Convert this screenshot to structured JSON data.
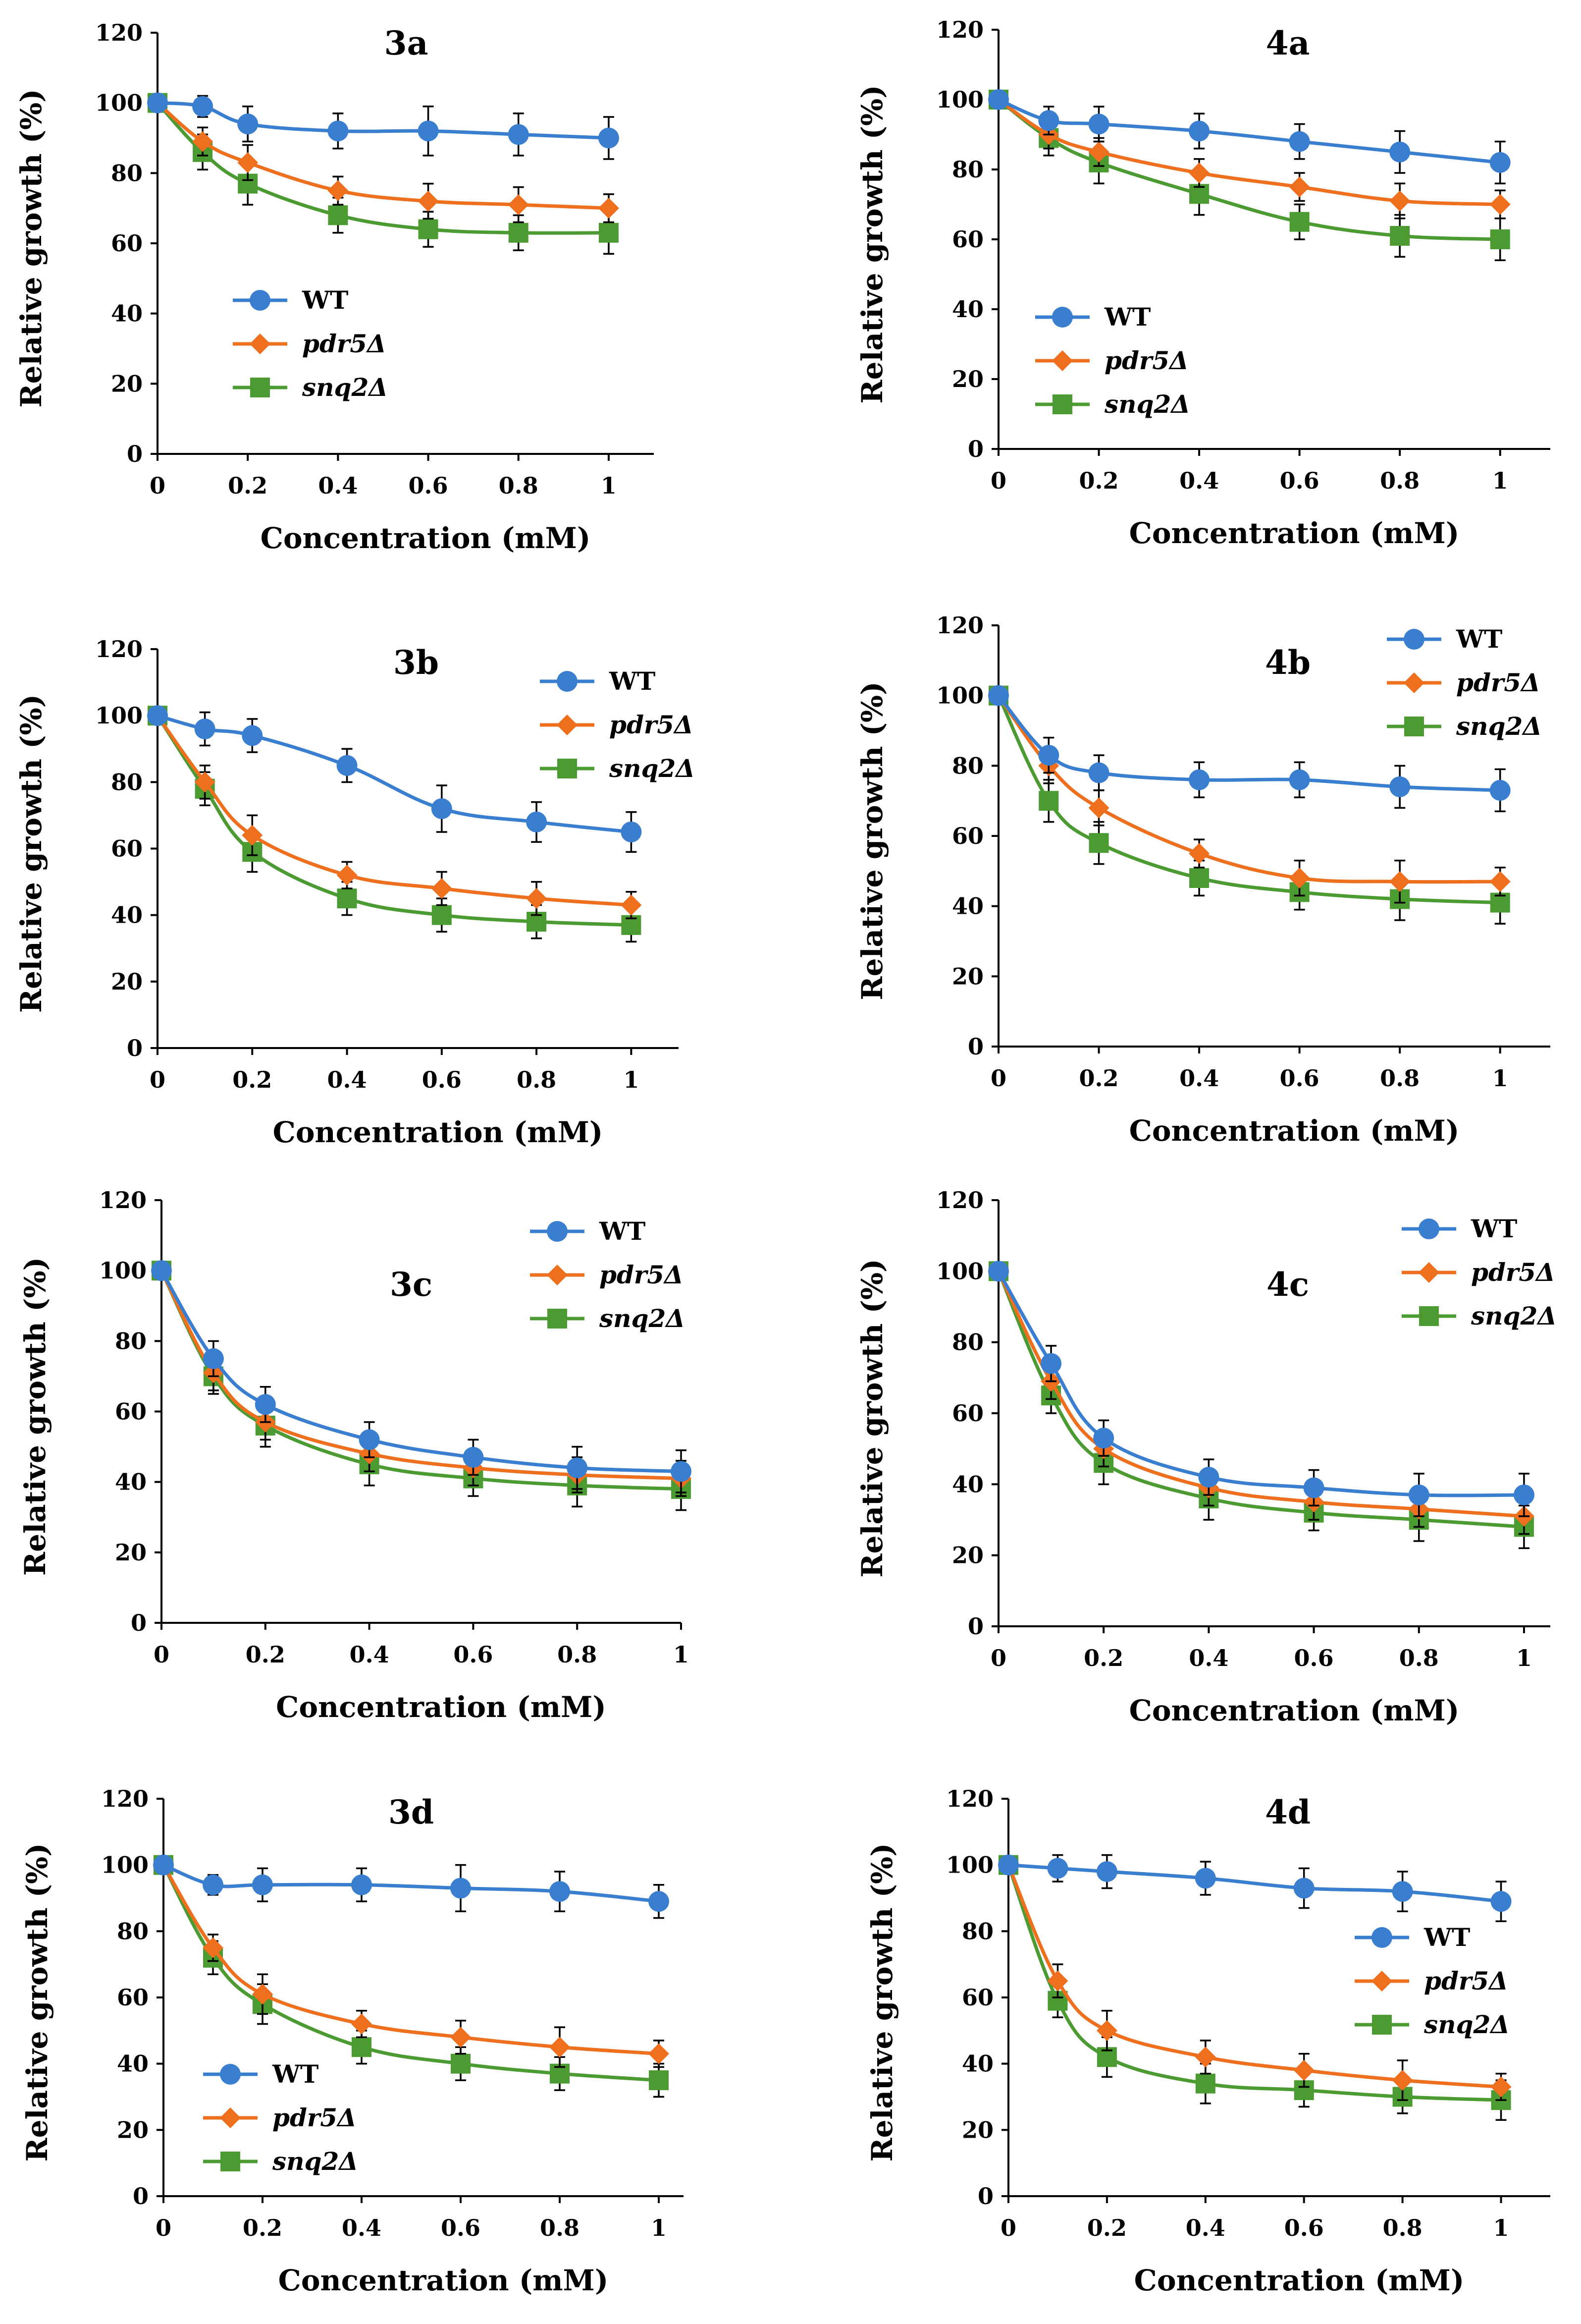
{
  "colors": {
    "WT": "#3a7fcf",
    "pdr5": "#ee6f1e",
    "snq2": "#4c9a32",
    "axis": "#000000"
  },
  "chart_data": [
    {
      "type": "line",
      "title": "3a",
      "xlabel": "Concentration (mM)",
      "ylabel": "Relative growth (%)",
      "xlim": [
        0,
        1.1
      ],
      "ylim": [
        0,
        120
      ],
      "x_ticks": [
        "0",
        "0.2",
        "0.4",
        "0.6",
        "0.8",
        "1"
      ],
      "y_ticks": [
        "0",
        "20",
        "40",
        "60",
        "80",
        "100",
        "120"
      ],
      "x": [
        0,
        0.1,
        0.2,
        0.4,
        0.6,
        0.8,
        1
      ],
      "legend_position": "lower-left",
      "series": [
        {
          "name": "WT",
          "marker": "circle",
          "values": [
            100,
            99,
            94,
            92,
            92,
            91,
            90
          ],
          "errors": [
            0,
            3,
            5,
            5,
            7,
            6,
            6
          ]
        },
        {
          "name": "pdr5Δ",
          "marker": "diamond",
          "values": [
            100,
            89,
            83,
            75,
            72,
            71,
            70
          ],
          "errors": [
            0,
            4,
            5,
            4,
            5,
            5,
            4
          ]
        },
        {
          "name": "snq2Δ",
          "marker": "square",
          "values": [
            100,
            86,
            77,
            68,
            64,
            63,
            63
          ],
          "errors": [
            0,
            5,
            6,
            5,
            5,
            5,
            6
          ]
        }
      ]
    },
    {
      "type": "line",
      "title": "4a",
      "xlabel": "Concentration (mM)",
      "ylabel": "Relative growth (%)",
      "xlim": [
        0,
        1.1
      ],
      "ylim": [
        0,
        120
      ],
      "x_ticks": [
        "0",
        "0.2",
        "0.4",
        "0.6",
        "0.8",
        "1"
      ],
      "y_ticks": [
        "0",
        "20",
        "40",
        "60",
        "80",
        "100",
        "120"
      ],
      "x": [
        0,
        0.1,
        0.2,
        0.4,
        0.6,
        0.8,
        1
      ],
      "legend_position": "lower-left",
      "series": [
        {
          "name": "WT",
          "marker": "circle",
          "values": [
            100,
            94,
            93,
            91,
            88,
            85,
            82
          ],
          "errors": [
            0,
            4,
            5,
            5,
            5,
            6,
            6
          ]
        },
        {
          "name": "pdr5Δ",
          "marker": "diamond",
          "values": [
            100,
            90,
            85,
            79,
            75,
            71,
            70
          ],
          "errors": [
            0,
            4,
            4,
            4,
            4,
            5,
            4
          ]
        },
        {
          "name": "snq2Δ",
          "marker": "square",
          "values": [
            100,
            89,
            82,
            73,
            65,
            61,
            60
          ],
          "errors": [
            0,
            5,
            6,
            6,
            5,
            6,
            6
          ]
        }
      ]
    },
    {
      "type": "line",
      "title": "3b",
      "xlabel": "Concentration (mM)",
      "ylabel": "Relative growth (%)",
      "xlim": [
        0,
        1.1
      ],
      "ylim": [
        0,
        120
      ],
      "x_ticks": [
        "0",
        "0.2",
        "0.4",
        "0.6",
        "0.8",
        "1"
      ],
      "y_ticks": [
        "0",
        "20",
        "40",
        "60",
        "80",
        "100",
        "120"
      ],
      "x": [
        0,
        0.1,
        0.2,
        0.4,
        0.6,
        0.8,
        1
      ],
      "legend_position": "top-right",
      "series": [
        {
          "name": "WT",
          "marker": "circle",
          "values": [
            100,
            96,
            94,
            85,
            72,
            68,
            65
          ],
          "errors": [
            0,
            5,
            5,
            5,
            7,
            6,
            6
          ]
        },
        {
          "name": "pdr5Δ",
          "marker": "diamond",
          "values": [
            100,
            80,
            64,
            52,
            48,
            45,
            43
          ],
          "errors": [
            0,
            5,
            6,
            4,
            5,
            5,
            4
          ]
        },
        {
          "name": "snq2Δ",
          "marker": "square",
          "values": [
            100,
            78,
            59,
            45,
            40,
            38,
            37
          ],
          "errors": [
            0,
            5,
            6,
            5,
            5,
            5,
            5
          ]
        }
      ]
    },
    {
      "type": "line",
      "title": "4b",
      "xlabel": "Concentration (mM)",
      "ylabel": "Relative growth (%)",
      "xlim": [
        0,
        1.1
      ],
      "ylim": [
        0,
        120
      ],
      "x_ticks": [
        "0",
        "0.2",
        "0.4",
        "0.6",
        "0.8",
        "1"
      ],
      "y_ticks": [
        "0",
        "20",
        "40",
        "60",
        "80",
        "100",
        "120"
      ],
      "x": [
        0,
        0.1,
        0.2,
        0.4,
        0.6,
        0.8,
        1
      ],
      "legend_position": "top-right",
      "series": [
        {
          "name": "WT",
          "marker": "circle",
          "values": [
            100,
            83,
            78,
            76,
            76,
            74,
            73
          ],
          "errors": [
            0,
            5,
            5,
            5,
            5,
            6,
            6
          ]
        },
        {
          "name": "pdr5Δ",
          "marker": "diamond",
          "values": [
            100,
            80,
            68,
            55,
            48,
            47,
            47
          ],
          "errors": [
            0,
            5,
            5,
            4,
            5,
            6,
            4
          ]
        },
        {
          "name": "snq2Δ",
          "marker": "square",
          "values": [
            100,
            70,
            58,
            48,
            44,
            42,
            41
          ],
          "errors": [
            0,
            6,
            6,
            5,
            5,
            6,
            6
          ]
        }
      ]
    },
    {
      "type": "line",
      "title": "3c",
      "xlabel": "Concentration (mM)",
      "ylabel": "Relative growth (%)",
      "xlim": [
        0,
        1.0
      ],
      "ylim": [
        0,
        120
      ],
      "x_ticks": [
        "0",
        "0.2",
        "0.4",
        "0.6",
        "0.8",
        "1"
      ],
      "y_ticks": [
        "0",
        "20",
        "40",
        "60",
        "80",
        "100",
        "120"
      ],
      "x": [
        0,
        0.1,
        0.2,
        0.4,
        0.6,
        0.8,
        1
      ],
      "legend_position": "top-right",
      "series": [
        {
          "name": "WT",
          "marker": "circle",
          "values": [
            100,
            75,
            62,
            52,
            47,
            44,
            43
          ],
          "errors": [
            0,
            5,
            5,
            5,
            5,
            6,
            6
          ]
        },
        {
          "name": "pdr5Δ",
          "marker": "diamond",
          "values": [
            100,
            71,
            57,
            48,
            44,
            42,
            41
          ],
          "errors": [
            0,
            5,
            5,
            5,
            5,
            5,
            5
          ]
        },
        {
          "name": "snq2Δ",
          "marker": "square",
          "values": [
            100,
            70,
            56,
            45,
            41,
            39,
            38
          ],
          "errors": [
            0,
            5,
            6,
            6,
            5,
            6,
            6
          ]
        }
      ]
    },
    {
      "type": "line",
      "title": "4c",
      "xlabel": "Concentration (mM)",
      "ylabel": "Relative growth (%)",
      "xlim": [
        0,
        1.05
      ],
      "ylim": [
        0,
        120
      ],
      "x_ticks": [
        "0",
        "0.2",
        "0.4",
        "0.6",
        "0.8",
        "1"
      ],
      "y_ticks": [
        "0",
        "20",
        "40",
        "60",
        "80",
        "100",
        "120"
      ],
      "x": [
        0,
        0.1,
        0.2,
        0.4,
        0.6,
        0.8,
        1
      ],
      "legend_position": "top-right",
      "series": [
        {
          "name": "WT",
          "marker": "circle",
          "values": [
            100,
            74,
            53,
            42,
            39,
            37,
            37
          ],
          "errors": [
            0,
            5,
            5,
            5,
            5,
            6,
            6
          ]
        },
        {
          "name": "pdr5Δ",
          "marker": "diamond",
          "values": [
            100,
            69,
            50,
            39,
            35,
            33,
            31
          ],
          "errors": [
            0,
            5,
            5,
            5,
            5,
            5,
            5
          ]
        },
        {
          "name": "snq2Δ",
          "marker": "square",
          "values": [
            100,
            65,
            46,
            36,
            32,
            30,
            28
          ],
          "errors": [
            0,
            5,
            6,
            6,
            5,
            6,
            6
          ]
        }
      ]
    },
    {
      "type": "line",
      "title": "3d",
      "xlabel": "Concentration (mM)",
      "ylabel": "Relative growth (%)",
      "xlim": [
        0,
        1.05
      ],
      "ylim": [
        0,
        120
      ],
      "x_ticks": [
        "0",
        "0.2",
        "0.4",
        "0.6",
        "0.8",
        "1"
      ],
      "y_ticks": [
        "0",
        "20",
        "40",
        "60",
        "80",
        "100",
        "120"
      ],
      "x": [
        0,
        0.1,
        0.2,
        0.4,
        0.6,
        0.8,
        1
      ],
      "legend_position": "lower-left",
      "series": [
        {
          "name": "WT",
          "marker": "circle",
          "values": [
            100,
            94,
            94,
            94,
            93,
            92,
            89
          ],
          "errors": [
            0,
            3,
            5,
            5,
            7,
            6,
            5
          ]
        },
        {
          "name": "pdr5Δ",
          "marker": "diamond",
          "values": [
            100,
            75,
            61,
            52,
            48,
            45,
            43
          ],
          "errors": [
            0,
            4,
            6,
            4,
            5,
            6,
            4
          ]
        },
        {
          "name": "snq2Δ",
          "marker": "square",
          "values": [
            100,
            72,
            58,
            45,
            40,
            37,
            35
          ],
          "errors": [
            0,
            5,
            6,
            5,
            5,
            5,
            5
          ]
        }
      ]
    },
    {
      "type": "line",
      "title": "4d",
      "xlabel": "Concentration (mM)",
      "ylabel": "Relative growth (%)",
      "xlim": [
        0,
        1.1
      ],
      "ylim": [
        0,
        120
      ],
      "x_ticks": [
        "0",
        "0.2",
        "0.4",
        "0.6",
        "0.8",
        "1"
      ],
      "y_ticks": [
        "0",
        "20",
        "40",
        "60",
        "80",
        "100",
        "120"
      ],
      "x": [
        0,
        0.1,
        0.2,
        0.4,
        0.6,
        0.8,
        1
      ],
      "legend_position": "right",
      "series": [
        {
          "name": "WT",
          "marker": "circle",
          "values": [
            100,
            99,
            98,
            96,
            93,
            92,
            89
          ],
          "errors": [
            0,
            4,
            5,
            5,
            6,
            6,
            6
          ]
        },
        {
          "name": "pdr5Δ",
          "marker": "diamond",
          "values": [
            100,
            65,
            50,
            42,
            38,
            35,
            33
          ],
          "errors": [
            0,
            5,
            6,
            5,
            5,
            6,
            4
          ]
        },
        {
          "name": "snq2Δ",
          "marker": "square",
          "values": [
            100,
            59,
            42,
            34,
            32,
            30,
            29
          ],
          "errors": [
            0,
            5,
            6,
            6,
            5,
            5,
            6
          ]
        }
      ]
    }
  ]
}
